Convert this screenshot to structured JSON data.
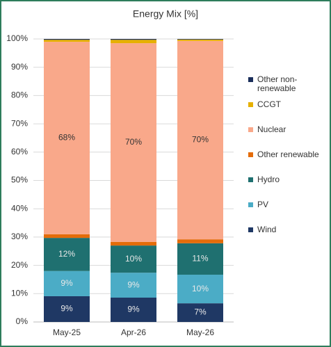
{
  "chart_data": {
    "type": "stacked_bar",
    "title": "Energy Mix [%]",
    "categories": [
      "May-25",
      "Apr-26",
      "May-26"
    ],
    "series": [
      {
        "name": "Wind",
        "color": "#1f3864",
        "values": [
          9.1,
          8.6,
          6.6
        ],
        "value_labels": [
          "9%",
          "9%",
          "7%"
        ]
      },
      {
        "name": "PV",
        "color": "#4bacc6",
        "values": [
          8.9,
          8.8,
          10.1
        ],
        "value_labels": [
          "9%",
          "9%",
          "10%"
        ]
      },
      {
        "name": "Hydro",
        "color": "#1f7070",
        "values": [
          11.7,
          9.6,
          11.1
        ],
        "value_labels": [
          "12%",
          "10%",
          "11%"
        ]
      },
      {
        "name": "Other renewable",
        "color": "#e46c0a",
        "values": [
          1.3,
          1.3,
          1.4
        ]
      },
      {
        "name": "Nuclear",
        "color": "#f9a88a",
        "values": [
          68,
          70.2,
          70.1
        ],
        "value_labels": [
          "68%",
          "70%",
          "70%"
        ]
      },
      {
        "name": "CCGT",
        "color": "#e6b000",
        "values": [
          0.7,
          1.2,
          0.5
        ]
      },
      {
        "name": "Other non-renewable",
        "color": "#1a2e5a",
        "values": [
          0.3,
          0.3,
          0.2
        ]
      }
    ],
    "ylim": [
      0,
      100
    ],
    "yticks": [
      {
        "value": 0,
        "label": "0%"
      },
      {
        "value": 10,
        "label": "10%"
      },
      {
        "value": 20,
        "label": "20%"
      },
      {
        "value": 30,
        "label": "30%"
      },
      {
        "value": 40,
        "label": "40%"
      },
      {
        "value": 50,
        "label": "50%"
      },
      {
        "value": 60,
        "label": "60%"
      },
      {
        "value": 70,
        "label": "70%"
      },
      {
        "value": 80,
        "label": "80%"
      },
      {
        "value": 90,
        "label": "90%"
      },
      {
        "value": 100,
        "label": "100%"
      }
    ],
    "grid": true,
    "legend": "right"
  }
}
